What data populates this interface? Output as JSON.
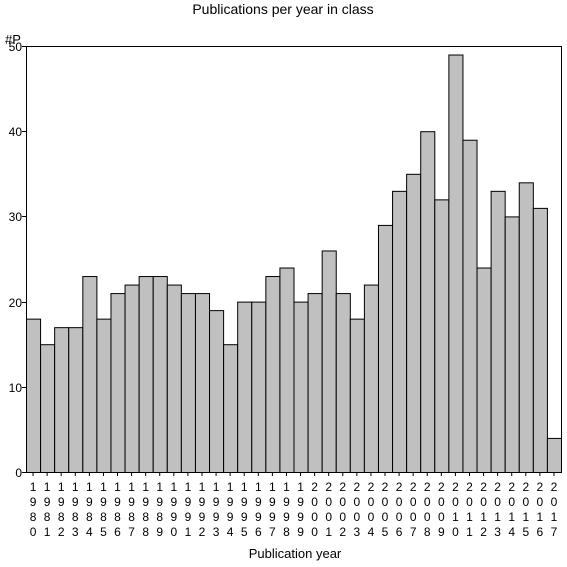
{
  "chart_data": {
    "type": "bar",
    "title": "Publications per year in class",
    "ylabel": "#P",
    "xlabel": "Publication year",
    "ylim": [
      0,
      50
    ],
    "yticks": [
      0,
      10,
      20,
      30,
      40,
      50
    ],
    "grid": false,
    "categories": [
      "1980",
      "1981",
      "1982",
      "1983",
      "1984",
      "1985",
      "1986",
      "1987",
      "1988",
      "1989",
      "1990",
      "1991",
      "1992",
      "1993",
      "1994",
      "1995",
      "1996",
      "1997",
      "1998",
      "1999",
      "2000",
      "2001",
      "2002",
      "2003",
      "2004",
      "2005",
      "2006",
      "2007",
      "2008",
      "2009",
      "2010",
      "2011",
      "2012",
      "2013",
      "2014",
      "2015",
      "2016",
      "2017"
    ],
    "values": [
      18,
      15,
      17,
      17,
      23,
      18,
      21,
      22,
      23,
      23,
      22,
      21,
      21,
      19,
      15,
      20,
      20,
      23,
      24,
      20,
      21,
      26,
      21,
      18,
      22,
      29,
      33,
      35,
      40,
      32,
      49,
      39,
      24,
      33,
      30,
      34,
      31,
      4
    ],
    "bar_color": "#c0c0c0",
    "bar_edge_color": "#000000",
    "background_color": "#ffffff"
  }
}
